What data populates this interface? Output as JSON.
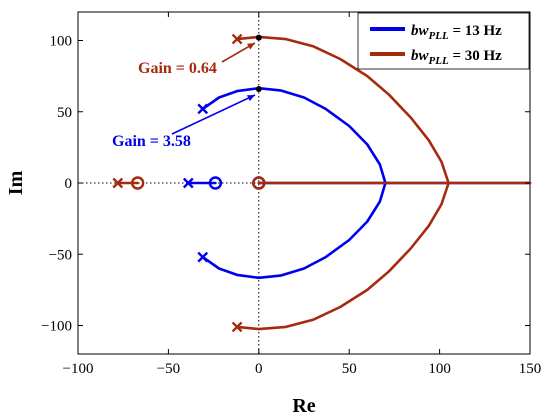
{
  "chart_data": {
    "type": "line",
    "xlabel": "Re",
    "ylabel": "Im",
    "xlim": [
      -100,
      150
    ],
    "ylim": [
      -120,
      120
    ],
    "xticks": [
      -100,
      -50,
      0,
      50,
      100,
      150
    ],
    "yticks": [
      -100,
      -50,
      0,
      50,
      100
    ],
    "xtick_labels": [
      "−100",
      "−50",
      "0",
      "50",
      "100",
      "150"
    ],
    "ytick_labels": [
      "−100",
      "−50",
      "0",
      "50",
      "100"
    ],
    "grid": false,
    "legend_position": "top-right",
    "series": [
      {
        "name": "bwPLL = 13 Hz",
        "legend_main": "bw",
        "legend_sub": "PLL",
        "legend_rest": " = 13 Hz",
        "color": "#0000ee",
        "poles": [
          [
            -31,
            52
          ],
          [
            -31,
            -52
          ],
          [
            -39,
            0
          ]
        ],
        "zeros": [
          [
            -24,
            0
          ],
          [
            0,
            0
          ]
        ],
        "branches": [
          [
            [
              -31,
              52
            ],
            [
              -22,
              60
            ],
            [
              -12,
              64.5
            ],
            [
              0,
              66.5
            ],
            [
              12,
              65
            ],
            [
              25,
              60
            ],
            [
              37,
              52
            ],
            [
              50,
              40
            ],
            [
              60,
              27
            ],
            [
              67,
              13
            ],
            [
              70,
              0
            ]
          ],
          [
            [
              70,
              0
            ],
            [
              67,
              -13
            ],
            [
              60,
              -27
            ],
            [
              50,
              -40
            ],
            [
              37,
              -52
            ],
            [
              25,
              -60
            ],
            [
              12,
              -65
            ],
            [
              0,
              -66.5
            ],
            [
              -12,
              -64.5
            ],
            [
              -22,
              -60
            ],
            [
              -31,
              -52
            ]
          ],
          [
            [
              -39,
              0
            ],
            [
              -24,
              0
            ]
          ],
          [
            [
              0,
              0
            ],
            [
              150,
              0
            ]
          ]
        ],
        "annotation": {
          "text": "Gain = 3.58",
          "point": [
            0,
            66
          ]
        }
      },
      {
        "name": "bwPLL = 30 Hz",
        "legend_main": "bw",
        "legend_sub": "PLL",
        "legend_rest": " = 30 Hz",
        "color": "#a52a0f",
        "poles": [
          [
            -12,
            101
          ],
          [
            -12,
            -101
          ],
          [
            -78,
            0
          ]
        ],
        "zeros": [
          [
            -67,
            0
          ],
          [
            0,
            0
          ]
        ],
        "branches": [
          [
            [
              -12,
              101
            ],
            [
              0,
              102.5
            ],
            [
              15,
              101
            ],
            [
              30,
              96
            ],
            [
              45,
              87
            ],
            [
              60,
              75
            ],
            [
              72,
              62
            ],
            [
              84,
              46
            ],
            [
              94,
              30
            ],
            [
              101,
              15
            ],
            [
              105,
              0
            ]
          ],
          [
            [
              105,
              0
            ],
            [
              101,
              -15
            ],
            [
              94,
              -30
            ],
            [
              84,
              -46
            ],
            [
              72,
              -62
            ],
            [
              60,
              -75
            ],
            [
              45,
              -87
            ],
            [
              30,
              -96
            ],
            [
              15,
              -101
            ],
            [
              0,
              -102.5
            ],
            [
              -12,
              -101
            ]
          ],
          [
            [
              -78,
              0
            ],
            [
              -67,
              0
            ]
          ],
          [
            [
              0,
              0
            ],
            [
              150,
              0
            ]
          ]
        ],
        "annotation": {
          "text": "Gain = 0.64",
          "point": [
            0,
            102
          ]
        }
      }
    ]
  }
}
